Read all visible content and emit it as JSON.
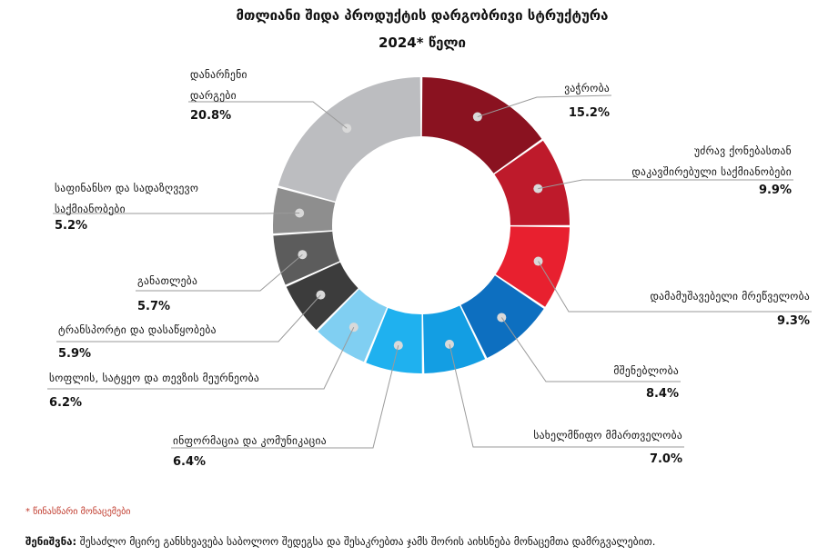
{
  "chart_data": {
    "type": "donut",
    "title": "მთლიანი შიდა პროდუქტის დარგობრივი სტრუქტურა",
    "subtitle": "2024* წელი",
    "unit": "%",
    "slices": [
      {
        "label_lines": [
          "ვაჭრობა"
        ],
        "value": 15.2,
        "value_text": "15.2%",
        "color": "#8a1220"
      },
      {
        "label_lines": [
          "უძრავ ქონებასთან",
          "დაკავშირებული საქმიანობები"
        ],
        "value": 9.9,
        "value_text": "9.9%",
        "color": "#be1a2b"
      },
      {
        "label_lines": [
          "დამამუშავებელი მრეწველობა"
        ],
        "value": 9.3,
        "value_text": "9.3%",
        "color": "#e8202f"
      },
      {
        "label_lines": [
          "მშენებლობა"
        ],
        "value": 8.4,
        "value_text": "8.4%",
        "color": "#0d6fc0"
      },
      {
        "label_lines": [
          "სახელმწიფო მმართველობა"
        ],
        "value": 7.0,
        "value_text": "7.0%",
        "color": "#139ee3"
      },
      {
        "label_lines": [
          "ინფორმაცია და კომუნიკაცია"
        ],
        "value": 6.4,
        "value_text": "6.4%",
        "color": "#1fb1ef"
      },
      {
        "label_lines": [
          "სოფლის, სატყეო და თევზის მეურნეობა"
        ],
        "value": 6.2,
        "value_text": "6.2%",
        "color": "#80cff2"
      },
      {
        "label_lines": [
          "ტრანსპორტი და დასაწყობება"
        ],
        "value": 5.9,
        "value_text": "5.9%",
        "color": "#3c3c3c"
      },
      {
        "label_lines": [
          "განათლება"
        ],
        "value": 5.7,
        "value_text": "5.7%",
        "color": "#5c5c5c"
      },
      {
        "label_lines": [
          "საფინანსო და სადაზღვევო",
          "საქმიანობები"
        ],
        "value": 5.2,
        "value_text": "5.2%",
        "color": "#8e8e8e"
      },
      {
        "label_lines": [
          "დანარჩენი",
          "დარგები"
        ],
        "value": 20.8,
        "value_text": "20.8%",
        "color": "#bcbdc0"
      }
    ],
    "legend": "none"
  },
  "notes": {
    "preliminary": "* წინასწარი მონაცემები",
    "footnote_label": "შენიშვნა:",
    "footnote_text": " შესაძლო მცირე განსხვავება საბოლოო შედეგსა და შესაკრებთა ჯამს შორის აიხსნება მონაცემთა დამრგვალებით."
  }
}
